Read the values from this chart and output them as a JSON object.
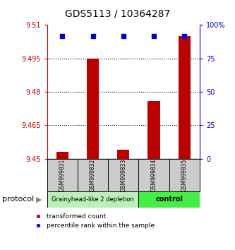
{
  "title": "GDS5113 / 10364287",
  "samples": [
    "GSM999831",
    "GSM999832",
    "GSM999833",
    "GSM999834",
    "GSM999835"
  ],
  "red_values": [
    9.453,
    9.495,
    9.454,
    9.476,
    9.505
  ],
  "blue_values": [
    92,
    92,
    91.5,
    92,
    92
  ],
  "ylim_left": [
    9.45,
    9.51
  ],
  "ylim_right": [
    0,
    100
  ],
  "yticks_left": [
    9.45,
    9.465,
    9.48,
    9.495,
    9.51
  ],
  "ytick_labels_left": [
    "9.45",
    "9.465",
    "9.48",
    "9.495",
    "9.51"
  ],
  "yticks_right": [
    0,
    25,
    50,
    75,
    100
  ],
  "ytick_labels_right": [
    "0",
    "25",
    "50",
    "75",
    "100%"
  ],
  "group1_label": "Grainyhead-like 2 depletion",
  "group2_label": "control",
  "group1_color": "#b8f0b8",
  "group2_color": "#44ee44",
  "protocol_label": "protocol",
  "red_color": "#bb0000",
  "blue_color": "#0000cc",
  "bar_bottom": 9.45,
  "legend_red_label": "transformed count",
  "legend_blue_label": "percentile rank within the sample",
  "bar_width": 0.4
}
